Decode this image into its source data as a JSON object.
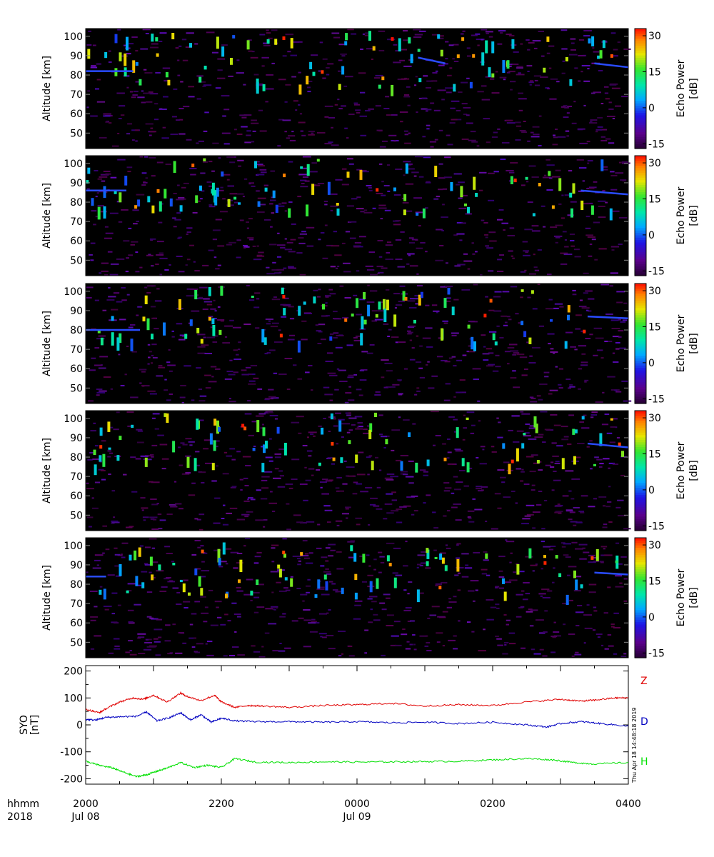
{
  "chart_data": [
    {
      "type": "heatmap",
      "panel": 1,
      "ylabel": "Altitude [km]",
      "yticks": [
        50,
        60,
        70,
        80,
        90,
        100
      ],
      "ylim": [
        42,
        104
      ],
      "xlim_hours": [
        20,
        28
      ],
      "colorbar": {
        "label": "Echo Power\n[dB]",
        "ticks": [
          -15,
          0,
          15,
          30
        ],
        "range": [
          -17,
          33
        ]
      },
      "echo_layers": [
        {
          "start": 20.0,
          "end": 20.7,
          "alt_start": 82,
          "alt_end": 82
        },
        {
          "start": 24.9,
          "end": 25.3,
          "alt_start": 89,
          "alt_end": 86
        },
        {
          "start": 27.5,
          "end": 28.0,
          "alt_start": 86,
          "alt_end": 84
        }
      ]
    },
    {
      "type": "heatmap",
      "panel": 2,
      "ylabel": "Altitude [km]",
      "yticks": [
        50,
        60,
        70,
        80,
        90,
        100
      ],
      "ylim": [
        42,
        104
      ],
      "xlim_hours": [
        20,
        28
      ],
      "colorbar": {
        "label": "Echo Power\n[dB]",
        "ticks": [
          -15,
          0,
          15,
          30
        ],
        "range": [
          -17,
          33
        ]
      },
      "echo_layers": [
        {
          "start": 20.0,
          "end": 20.6,
          "alt_start": 86,
          "alt_end": 86
        },
        {
          "start": 27.3,
          "end": 28.0,
          "alt_start": 86,
          "alt_end": 84
        }
      ]
    },
    {
      "type": "heatmap",
      "panel": 3,
      "ylabel": "Altitude [km]",
      "yticks": [
        50,
        60,
        70,
        80,
        90,
        100
      ],
      "ylim": [
        42,
        104
      ],
      "xlim_hours": [
        20,
        28
      ],
      "colorbar": {
        "label": "Echo Power\n[dB]",
        "ticks": [
          -15,
          0,
          15,
          30
        ],
        "range": [
          -17,
          33
        ]
      },
      "echo_layers": [
        {
          "start": 20.0,
          "end": 20.8,
          "alt_start": 80,
          "alt_end": 80
        },
        {
          "start": 27.4,
          "end": 28.0,
          "alt_start": 87,
          "alt_end": 86
        }
      ]
    },
    {
      "type": "heatmap",
      "panel": 4,
      "ylabel": "Altitude [km]",
      "yticks": [
        50,
        60,
        70,
        80,
        90,
        100
      ],
      "ylim": [
        42,
        104
      ],
      "xlim_hours": [
        20,
        28
      ],
      "colorbar": {
        "label": "Echo Power\n[dB]",
        "ticks": [
          -15,
          0,
          15,
          30
        ],
        "range": [
          -17,
          33
        ]
      },
      "echo_layers": [
        {
          "start": 27.4,
          "end": 28.0,
          "alt_start": 87,
          "alt_end": 85
        }
      ]
    },
    {
      "type": "heatmap",
      "panel": 5,
      "ylabel": "Altitude [km]",
      "yticks": [
        50,
        60,
        70,
        80,
        90,
        100
      ],
      "ylim": [
        42,
        104
      ],
      "xlim_hours": [
        20,
        28
      ],
      "colorbar": {
        "label": "Echo Power\n[dB]",
        "ticks": [
          -15,
          0,
          15,
          30
        ],
        "range": [
          -17,
          33
        ]
      },
      "echo_layers": [
        {
          "start": 20.0,
          "end": 20.3,
          "alt_start": 84,
          "alt_end": 84
        },
        {
          "start": 27.5,
          "end": 28.0,
          "alt_start": 86,
          "alt_end": 85
        }
      ]
    },
    {
      "type": "line",
      "panel": 6,
      "ylabel": "SYO\n[nT]",
      "ylim": [
        -220,
        220
      ],
      "yticks": [
        -200,
        -100,
        0,
        100,
        200
      ],
      "xlim_hours": [
        20,
        28
      ],
      "series": [
        {
          "name": "Z",
          "color": "#e00000",
          "x": [
            20.0,
            20.2,
            20.3,
            20.5,
            20.7,
            20.85,
            21.0,
            21.2,
            21.4,
            21.5,
            21.7,
            21.9,
            22.0,
            22.2,
            22.4,
            22.6,
            23.0,
            23.5,
            24.0,
            24.5,
            25.0,
            25.5,
            26.0,
            26.5,
            27.0,
            27.3,
            27.5,
            27.8,
            28.0
          ],
          "y": [
            58,
            45,
            60,
            85,
            100,
            95,
            110,
            85,
            118,
            105,
            90,
            110,
            85,
            65,
            72,
            70,
            65,
            72,
            75,
            80,
            70,
            75,
            72,
            85,
            95,
            88,
            92,
            100,
            100
          ]
        },
        {
          "name": "D",
          "color": "#0000c0",
          "x": [
            20.0,
            20.15,
            20.3,
            20.5,
            20.75,
            20.9,
            21.05,
            21.25,
            21.4,
            21.55,
            21.7,
            21.85,
            22.0,
            22.2,
            22.5,
            23.0,
            23.5,
            24.0,
            24.5,
            25.0,
            25.5,
            26.0,
            26.5,
            26.8,
            27.0,
            27.3,
            27.6,
            28.0
          ],
          "y": [
            20,
            18,
            28,
            30,
            32,
            48,
            15,
            28,
            45,
            18,
            38,
            10,
            25,
            15,
            12,
            12,
            10,
            12,
            8,
            10,
            5,
            10,
            0,
            -8,
            5,
            12,
            5,
            -5
          ]
        },
        {
          "name": "H",
          "color": "#00e000",
          "x": [
            20.0,
            20.2,
            20.4,
            20.55,
            20.75,
            20.9,
            21.05,
            21.2,
            21.4,
            21.6,
            21.8,
            22.0,
            22.2,
            22.5,
            23.0,
            23.5,
            24.0,
            24.5,
            25.0,
            25.5,
            26.0,
            26.5,
            26.9,
            27.2,
            27.5,
            28.0
          ],
          "y": [
            -135,
            -150,
            -160,
            -175,
            -192,
            -185,
            -172,
            -160,
            -140,
            -158,
            -150,
            -158,
            -125,
            -138,
            -140,
            -137,
            -138,
            -137,
            -136,
            -135,
            -130,
            -125,
            -130,
            -140,
            -145,
            -140
          ]
        }
      ]
    }
  ],
  "xaxis": {
    "row1_label": "hhmm",
    "row2_label": "2018",
    "ticks": [
      {
        "hour": 20,
        "time": "2000",
        "date": "Jul 08"
      },
      {
        "hour": 22,
        "time": "2200",
        "date": ""
      },
      {
        "hour": 24,
        "time": "0000",
        "date": "Jul 09"
      },
      {
        "hour": 26,
        "time": "0200",
        "date": ""
      },
      {
        "hour": 28,
        "time": "0400",
        "date": ""
      }
    ]
  },
  "timestamp": "Thu Apr 18 14:48:18 2019"
}
